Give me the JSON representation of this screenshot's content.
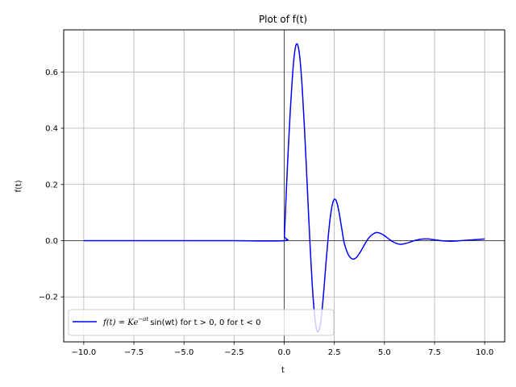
{
  "chart_data": {
    "type": "line",
    "title": "Plot of f(t)",
    "xlabel": "t",
    "ylabel": "f(t)",
    "xlim": [
      -11.0,
      11.0
    ],
    "ylim": [
      -0.36,
      0.75
    ],
    "xticks": [
      -10.0,
      -7.5,
      -5.0,
      -2.5,
      0.0,
      2.5,
      5.0,
      7.5,
      10.0
    ],
    "xtick_labels": [
      "−10.0",
      "−7.5",
      "−5.0",
      "−2.5",
      "0.0",
      "2.5",
      "5.0",
      "7.5",
      "10.0"
    ],
    "yticks": [
      -0.2,
      0.0,
      0.2,
      0.4,
      0.6
    ],
    "ytick_labels": [
      "−0.2",
      "0.0",
      "0.2",
      "0.4",
      "0.6"
    ],
    "grid": true,
    "reference_lines": {
      "x": 0,
      "y": 0
    },
    "legend_position": "lower-left",
    "series": [
      {
        "name": "f(t) = Ke^{-at} sin(wt) for t > 0, 0 for t < 0",
        "color": "#0000ff",
        "x": [
          -10.0,
          -7.5,
          -5.0,
          -2.5,
          0.0,
          0.01,
          0.05,
          0.1,
          0.2,
          0.3,
          0.4,
          0.5,
          0.6,
          0.7,
          0.8,
          0.9,
          1.0,
          1.1,
          1.2,
          1.3,
          1.4,
          1.5,
          1.6,
          1.7,
          1.8,
          1.9,
          2.0,
          2.1,
          2.2,
          2.3,
          2.4,
          2.5,
          2.6,
          2.7,
          2.8,
          2.9,
          3.0,
          3.2,
          3.4,
          3.6,
          3.8,
          4.0,
          4.2,
          4.4,
          4.6,
          4.8,
          5.0,
          5.2,
          5.4,
          5.6,
          5.8,
          6.0,
          6.2,
          6.4,
          6.6,
          6.8,
          7.0,
          7.2,
          7.4,
          7.6,
          7.8,
          8.0,
          8.2,
          8.4,
          8.6,
          8.8,
          9.0,
          9.2,
          9.4,
          9.6,
          9.8,
          10.0
        ],
        "y": [
          0,
          0,
          0,
          0,
          0,
          0.016,
          0.08,
          0.166,
          0.322,
          0.458,
          0.573,
          0.658,
          0.698,
          0.69,
          0.636,
          0.541,
          0.415,
          0.27,
          0.117,
          -0.03,
          -0.158,
          -0.253,
          -0.31,
          -0.325,
          -0.298,
          -0.239,
          -0.155,
          -0.066,
          0.017,
          0.084,
          0.128,
          0.147,
          0.141,
          0.114,
          0.074,
          0.03,
          -0.01,
          -0.05,
          -0.065,
          -0.06,
          -0.04,
          -0.015,
          0.008,
          0.022,
          0.029,
          0.026,
          0.018,
          0.007,
          -0.003,
          -0.01,
          -0.013,
          -0.011,
          -0.007,
          -0.002,
          0.002,
          0.005,
          0.006,
          0.006,
          0.004,
          0.002,
          0.0,
          -0.001,
          -0.002,
          -0.002,
          -0.001,
          0.0,
          0.001,
          0.002,
          0.003,
          0.004,
          0.005,
          0.006
        ]
      }
    ]
  },
  "legend": {
    "label_prefix": "f(t) = Ke",
    "label_superscript": "−at",
    "label_suffix": "sin(wt) for t > 0, 0 for t < 0"
  }
}
